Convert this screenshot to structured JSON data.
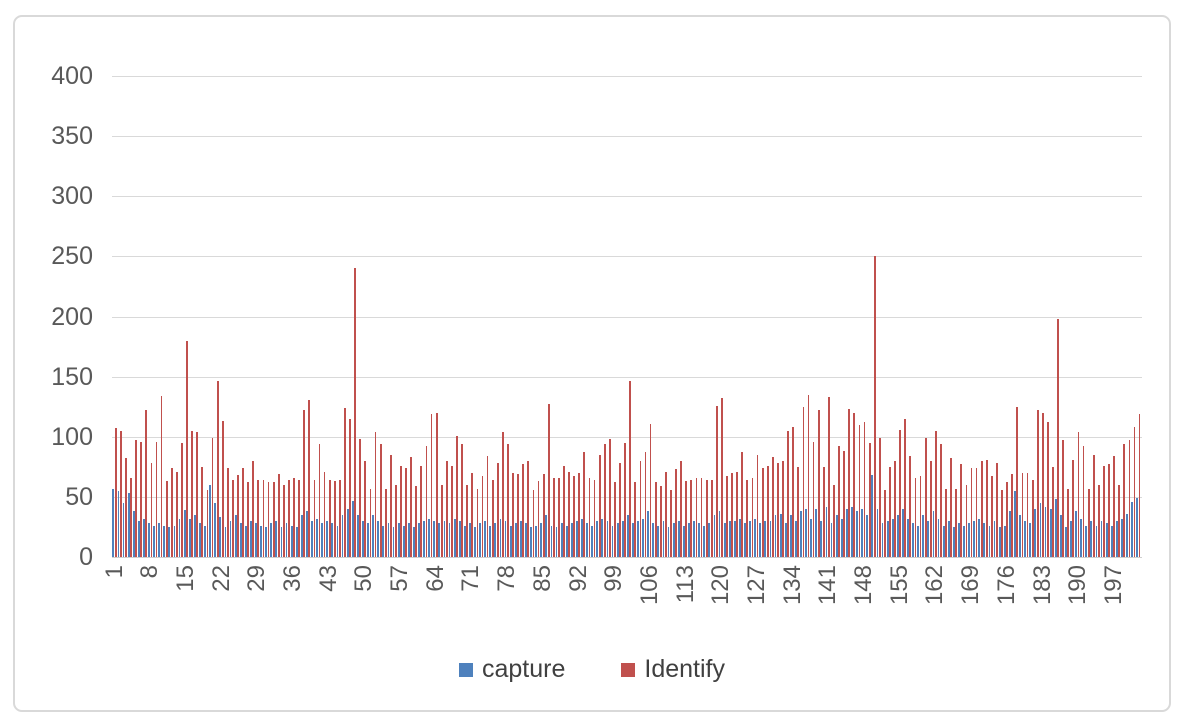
{
  "colors": {
    "capture": "#4E81BD",
    "identify": "#C0504D",
    "grid": "#D9D9D9",
    "axis_text": "#595959",
    "frame_border": "#D9D9D9",
    "background": "#FFFFFF"
  },
  "legend": {
    "position": "bottom",
    "items": [
      {
        "label": "capture",
        "color": "#4E81BD"
      },
      {
        "label": "Identify",
        "color": "#C0504D"
      }
    ]
  },
  "chart_data": {
    "type": "bar",
    "title": "",
    "xlabel": "",
    "ylabel": "",
    "grid": "horizontal",
    "legend_position": "bottom",
    "ylim": [
      0,
      400
    ],
    "y_ticks": [
      0,
      50,
      100,
      150,
      200,
      250,
      300,
      350,
      400
    ],
    "n_points": 202,
    "x_start": 1,
    "x_tick_step": 7,
    "x_tick_labels": [
      "1",
      "8",
      "15",
      "22",
      "29",
      "36",
      "43",
      "50",
      "57",
      "64",
      "71",
      "78",
      "85",
      "92",
      "99",
      "106",
      "113",
      "120",
      "127",
      "134",
      "141",
      "148",
      "155",
      "162",
      "169",
      "176",
      "183",
      "190",
      "197"
    ],
    "series": [
      {
        "name": "capture",
        "color": "#4E81BD",
        "values": [
          57,
          55,
          45,
          53,
          38,
          30,
          32,
          28,
          26,
          28,
          26,
          25,
          26,
          32,
          39,
          32,
          35,
          28,
          26,
          60,
          45,
          33,
          25,
          30,
          35,
          28,
          26,
          30,
          28,
          26,
          25,
          28,
          30,
          25,
          28,
          26,
          25,
          35,
          38,
          30,
          32,
          28,
          30,
          28,
          26,
          35,
          40,
          47,
          35,
          30,
          28,
          35,
          30,
          26,
          28,
          25,
          28,
          26,
          28,
          25,
          28,
          30,
          32,
          30,
          28,
          30,
          28,
          32,
          30,
          26,
          28,
          25,
          28,
          30,
          26,
          28,
          32,
          30,
          26,
          28,
          30,
          28,
          25,
          26,
          28,
          35,
          26,
          25,
          28,
          26,
          28,
          30,
          32,
          28,
          26,
          30,
          32,
          30,
          26,
          28,
          30,
          35,
          28,
          30,
          32,
          38,
          28,
          26,
          30,
          25,
          28,
          30,
          26,
          28,
          30,
          28,
          26,
          28,
          35,
          38,
          28,
          30,
          30,
          32,
          28,
          30,
          32,
          28,
          30,
          30,
          35,
          36,
          28,
          35,
          30,
          38,
          40,
          32,
          40,
          30,
          42,
          28,
          35,
          32,
          40,
          42,
          38,
          40,
          35,
          68,
          40,
          28,
          30,
          32,
          35,
          40,
          32,
          28,
          26,
          35,
          30,
          38,
          32,
          26,
          30,
          25,
          28,
          26,
          28,
          30,
          32,
          28,
          26,
          30,
          25,
          26,
          38,
          55,
          35,
          30,
          28,
          40,
          45,
          42,
          40,
          48,
          35,
          25,
          30,
          38,
          32,
          26,
          30,
          26,
          30,
          28,
          26,
          30,
          32,
          36,
          46,
          49
        ]
      },
      {
        "name": "Identify",
        "color": "#C0504D",
        "values": [
          107,
          105,
          82,
          66,
          97,
          96,
          122,
          78,
          96,
          134,
          63,
          74,
          71,
          95,
          180,
          105,
          104,
          75,
          56,
          99,
          146,
          113,
          74,
          64,
          68,
          74,
          62,
          80,
          64,
          64,
          62,
          62,
          69,
          60,
          64,
          66,
          64,
          122,
          131,
          64,
          94,
          71,
          64,
          63,
          64,
          124,
          115,
          240,
          98,
          80,
          57,
          104,
          94,
          57,
          85,
          60,
          76,
          74,
          83,
          59,
          76,
          92,
          119,
          120,
          60,
          80,
          76,
          101,
          94,
          60,
          70,
          57,
          67,
          84,
          64,
          78,
          104,
          94,
          70,
          69,
          77,
          80,
          56,
          63,
          69,
          127,
          66,
          66,
          76,
          71,
          67,
          70,
          87,
          66,
          64,
          85,
          94,
          98,
          62,
          78,
          95,
          146,
          62,
          80,
          87,
          111,
          62,
          59,
          71,
          56,
          73,
          80,
          63,
          64,
          66,
          66,
          64,
          64,
          126,
          132,
          67,
          70,
          71,
          87,
          64,
          66,
          85,
          74,
          76,
          83,
          78,
          80,
          105,
          108,
          75,
          125,
          135,
          96,
          122,
          75,
          133,
          60,
          92,
          88,
          123,
          120,
          110,
          112,
          95,
          250,
          99,
          56,
          75,
          80,
          106,
          115,
          84,
          66,
          67,
          99,
          80,
          105,
          94,
          57,
          82,
          57,
          77,
          60,
          74,
          74,
          80,
          81,
          67,
          78,
          56,
          62,
          69,
          125,
          70,
          70,
          64,
          122,
          120,
          112,
          75,
          198,
          97,
          57,
          81,
          104,
          92,
          57,
          85,
          60,
          76,
          77,
          84,
          60,
          94,
          97,
          108,
          119
        ]
      }
    ]
  }
}
